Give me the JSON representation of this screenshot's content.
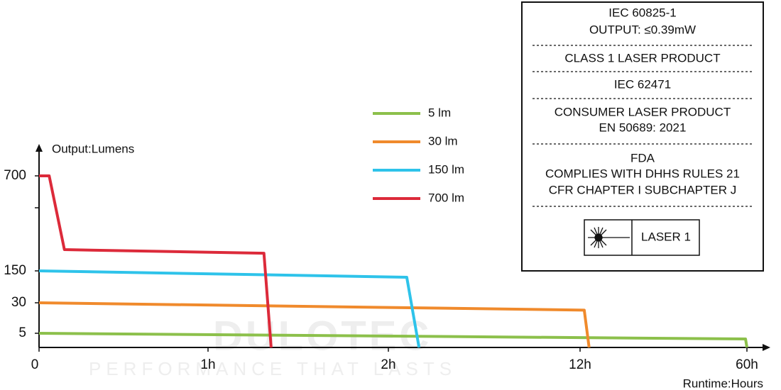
{
  "chart_data": {
    "type": "line",
    "y_label": "Output:Lumens",
    "x_label": "Runtime:Hours",
    "xlim": [
      0,
      60
    ],
    "ylim": [
      0,
      700
    ],
    "xticks": [
      {
        "value": 0,
        "label": "0"
      },
      {
        "value": 1,
        "label": "1h"
      },
      {
        "value": 2,
        "label": "2h"
      },
      {
        "value": 12,
        "label": "12h"
      },
      {
        "value": 60,
        "label": "60h"
      }
    ],
    "yticks": [
      5,
      30,
      150,
      700
    ],
    "series": [
      {
        "name": "5 lm",
        "color": "#8cc04b",
        "x": [
          0,
          59.6,
          60
        ],
        "values": [
          5,
          3,
          0
        ]
      },
      {
        "name": "30 lm",
        "color": "#f08a2c",
        "x": [
          0,
          13.2,
          14.6
        ],
        "values": [
          30,
          24,
          0
        ]
      },
      {
        "name": "150 lm",
        "color": "#2ec3ea",
        "x": [
          0,
          2.96,
          3.6
        ],
        "values": [
          150,
          126,
          0
        ]
      },
      {
        "name": "700 lm",
        "color": "#dc2a3a",
        "x": [
          0,
          0.06,
          0.15,
          1.31,
          1.35
        ],
        "values": [
          700,
          700,
          273,
          252,
          0
        ]
      }
    ],
    "watermark": [
      "DULOTEC",
      "PERFORMANCE THAT LASTS"
    ]
  },
  "label_box": {
    "sections": [
      [
        "IEC 60825-1",
        "OUTPUT: ≤0.39mW"
      ],
      [
        "CLASS 1 LASER PRODUCT"
      ],
      [
        "IEC 62471"
      ],
      [
        "CONSUMER LASER PRODUCT",
        "EN 50689: 2021"
      ],
      [
        "FDA",
        "COMPLIES WITH DHHS RULES 21",
        "CFR CHAPTER I SUBCHAPTER J"
      ]
    ],
    "laser_label": "LASER 1"
  }
}
